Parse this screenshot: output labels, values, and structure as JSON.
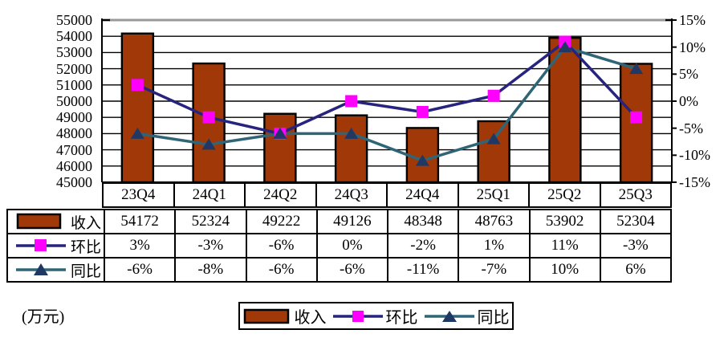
{
  "unit_label": "(万元)",
  "colors": {
    "bar_fill": "#A03808",
    "bar_stroke": "#000000",
    "huanbi_line": "#26247E",
    "huanbi_marker": "#FF00FF",
    "tongbi_line": "#2F6577",
    "tongbi_marker": "#1F3864",
    "grid": "#000000",
    "plot_top_border": "#999999",
    "text": "#000000"
  },
  "chart_data": {
    "type": "combo-bar-line",
    "categories": [
      "23Q4",
      "24Q1",
      "24Q2",
      "24Q3",
      "24Q4",
      "25Q1",
      "25Q2",
      "25Q3"
    ],
    "series": [
      {
        "name": "收入",
        "type": "bar",
        "axis": "left",
        "values": [
          54172,
          52324,
          49222,
          49126,
          48348,
          48763,
          53902,
          52304
        ]
      },
      {
        "name": "环比",
        "type": "line",
        "axis": "right",
        "marker": "square",
        "values_pct": [
          3,
          -3,
          -6,
          0,
          -2,
          1,
          11,
          -3
        ]
      },
      {
        "name": "同比",
        "type": "line",
        "axis": "right",
        "marker": "triangle",
        "values_pct": [
          -6,
          -8,
          -6,
          -6,
          -11,
          -7,
          10,
          6
        ]
      }
    ],
    "left_axis": {
      "min": 45000,
      "max": 55000,
      "step": 1000,
      "tick_labels": [
        "55000",
        "54000",
        "53000",
        "52000",
        "51000",
        "50000",
        "49000",
        "48000",
        "47000",
        "46000",
        "45000"
      ]
    },
    "right_axis": {
      "min": -15,
      "max": 15,
      "step": 5,
      "tick_labels": [
        "15%",
        "10%",
        "5%",
        "0%",
        "-5%",
        "-10%",
        "-15%"
      ]
    },
    "legend": [
      "收入",
      "环比",
      "同比"
    ],
    "grid": "horizontal",
    "legend_position": "bottom"
  },
  "table": {
    "rows": [
      {
        "label": "收入",
        "values": [
          "54172",
          "52324",
          "49222",
          "49126",
          "48348",
          "48763",
          "53902",
          "52304"
        ]
      },
      {
        "label": "环比",
        "values": [
          "3%",
          "-3%",
          "-6%",
          "0%",
          "-2%",
          "1%",
          "11%",
          "-3%"
        ]
      },
      {
        "label": "同比",
        "values": [
          "-6%",
          "-8%",
          "-6%",
          "-6%",
          "-11%",
          "-7%",
          "10%",
          "6%"
        ]
      }
    ]
  }
}
